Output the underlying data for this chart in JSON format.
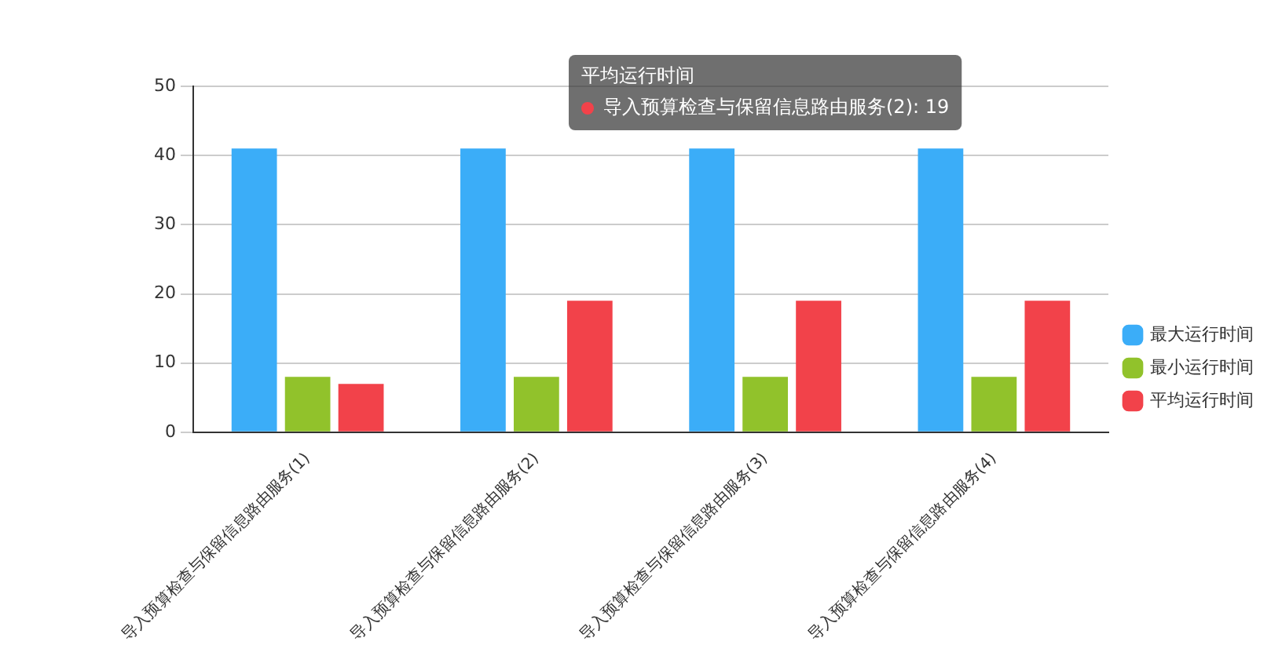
{
  "chart_data": {
    "type": "bar",
    "categories": [
      "导入预算检查与保留信息路由服务(1)",
      "导入预算检查与保留信息路由服务(2)",
      "导入预算检查与保留信息路由服务(3)",
      "导入预算检查与保留信息路由服务(4)"
    ],
    "series": [
      {
        "name": "最大运行时间",
        "color": "#3badf8",
        "values": [
          41,
          41,
          41,
          41
        ]
      },
      {
        "name": "最小运行时间",
        "color": "#91c22b",
        "values": [
          8,
          8,
          8,
          8
        ]
      },
      {
        "name": "平均运行时间",
        "color": "#f2424a",
        "values": [
          7,
          19,
          19,
          19
        ]
      }
    ],
    "ylim": [
      0,
      50
    ],
    "yticks": [
      0,
      10,
      20,
      30,
      40,
      50
    ],
    "grid": "y",
    "legend": "right",
    "annotations": [
      "平均运行时间",
      "导入预算检查与保留信息路由服务(2): 19"
    ]
  }
}
